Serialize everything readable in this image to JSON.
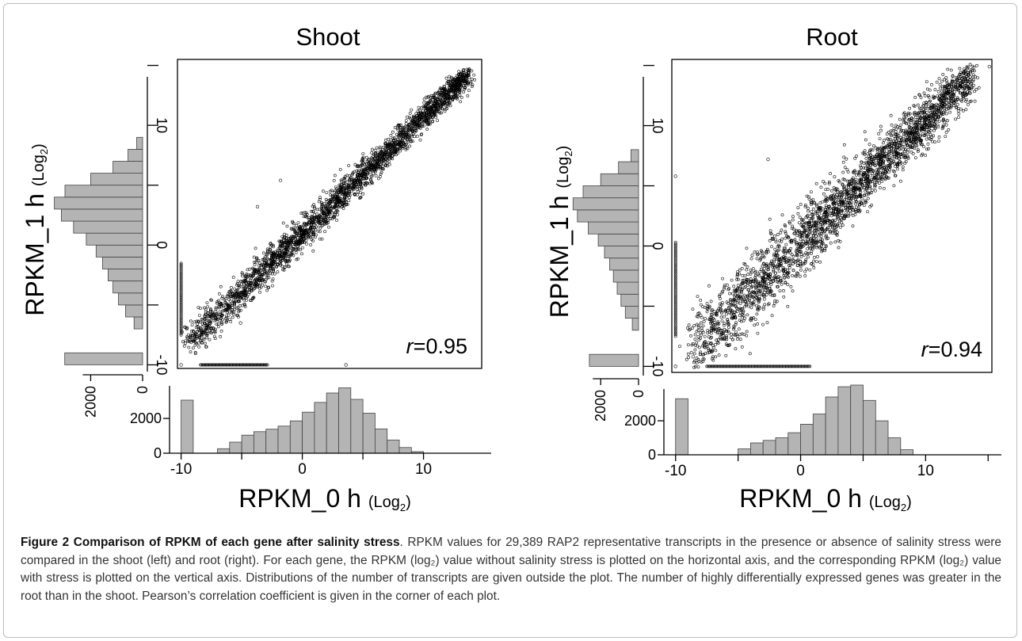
{
  "figure": {
    "caption_title": "Figure 2 Comparison of RPKM of each gene after salinity stress",
    "caption_body": ". RPKM values for 29,389 RAP2 representative transcripts in the presence or absence of salinity stress were compared in the shoot (left) and root (right). For each gene, the RPKM (log₂) value without salinity stress is plotted on the horizontal axis, and the corresponding RPKM (log₂) value with stress is plotted on the vertical axis. Distributions of the number of transcripts are given outside the plot. The number of highly differentially expressed genes was greater in the root than in the shoot. Pearson’s correlation coefficient is given in the corner of each plot."
  },
  "colors": {
    "hist_fill": "#b4b4b4",
    "point": "#000000",
    "caption_text": "#333333",
    "frame": "#bdbdbd"
  },
  "chart_data": [
    {
      "type": "scatter",
      "title": "Shoot",
      "xlabel": "RPKM_0 h",
      "xlabel_unit": "(Log",
      "ylabel": "RPKM_1 h",
      "ylabel_unit": "(Log",
      "log_base_subscript": "2",
      "xlim": [
        -10.3,
        14.8
      ],
      "ylim": [
        -10.3,
        15.5
      ],
      "x_ticks": [
        -10,
        0,
        10
      ],
      "y_ticks": [
        -10,
        0,
        10
      ],
      "annotation": {
        "label": "r",
        "value": "=0.95"
      },
      "scatter_band": {
        "from": [
          -9.5,
          -8.3
        ],
        "to": [
          13.7,
          14.3
        ],
        "spread": 1.2
      },
      "zero_column_x": {
        "x": -10,
        "y_from": -7.5,
        "y_to": -1.5
      },
      "zero_row_y": {
        "y": -10,
        "x_from": -8.4,
        "x_to": -2.8
      },
      "outliers": [
        [
          -3.7,
          3.2
        ],
        [
          -5.1,
          -6.5
        ],
        [
          3.6,
          -10
        ],
        [
          -1.8,
          5.4
        ]
      ],
      "x_hist": {
        "bins": [
          [
            -10,
            -9
          ],
          [
            -7,
            -6
          ],
          [
            -6,
            -5
          ],
          [
            -5,
            -4
          ],
          [
            -4,
            -3
          ],
          [
            -3,
            -2
          ],
          [
            -2,
            -1
          ],
          [
            -1,
            0
          ],
          [
            0,
            1
          ],
          [
            1,
            2
          ],
          [
            2,
            3
          ],
          [
            3,
            4
          ],
          [
            4,
            5
          ],
          [
            5,
            6
          ],
          [
            6,
            7
          ],
          [
            7,
            8
          ],
          [
            8,
            9
          ],
          [
            9,
            10
          ]
        ],
        "counts": [
          3050,
          260,
          640,
          1040,
          1240,
          1380,
          1560,
          1860,
          2360,
          2920,
          3460,
          3760,
          3100,
          2300,
          1400,
          760,
          330,
          90
        ],
        "ticks": [
          0,
          2000
        ]
      },
      "y_hist": {
        "bins": [
          [
            -10,
            -9
          ],
          [
            -7,
            -6
          ],
          [
            -6,
            -5
          ],
          [
            -5,
            -4
          ],
          [
            -4,
            -3
          ],
          [
            -3,
            -2
          ],
          [
            -2,
            -1
          ],
          [
            -1,
            0
          ],
          [
            0,
            1
          ],
          [
            1,
            2
          ],
          [
            2,
            3
          ],
          [
            3,
            4
          ],
          [
            4,
            5
          ],
          [
            5,
            6
          ],
          [
            6,
            7
          ],
          [
            7,
            8
          ],
          [
            8,
            9
          ]
        ],
        "counts": [
          3000,
          330,
          660,
          930,
          1140,
          1330,
          1540,
          1790,
          2170,
          2660,
          3130,
          3400,
          2990,
          2000,
          1140,
          560,
          230
        ],
        "ticks": [
          0,
          2000
        ]
      }
    },
    {
      "type": "scatter",
      "title": "Root",
      "xlabel": "RPKM_0 h",
      "xlabel_unit": "(Log",
      "ylabel": "RPKM_1 h",
      "ylabel_unit": "(Log",
      "log_base_subscript": "2",
      "xlim": [
        -10.3,
        15.3
      ],
      "ylim": [
        -10.5,
        15.5
      ],
      "x_ticks": [
        -10,
        0,
        10
      ],
      "y_ticks": [
        -10,
        0,
        10
      ],
      "annotation": {
        "label": "r",
        "value": "=0.94"
      },
      "scatter_band": {
        "from": [
          -8.8,
          -8.8
        ],
        "to": [
          13.8,
          14.3
        ],
        "spread": 2.6
      },
      "zero_column_x": {
        "x": -10,
        "y_from": -7.5,
        "y_to": 0.3
      },
      "zero_row_y": {
        "y": -10,
        "x_from": -7.5,
        "x_to": 0.8
      },
      "outliers": [
        [
          15.1,
          14.9
        ],
        [
          -8.6,
          -9.2
        ],
        [
          -2.6,
          7.2
        ],
        [
          -10,
          5.8
        ]
      ],
      "x_hist": {
        "bins": [
          [
            -10,
            -9
          ],
          [
            -5,
            -4
          ],
          [
            -4,
            -3
          ],
          [
            -3,
            -2
          ],
          [
            -2,
            -1
          ],
          [
            -1,
            0
          ],
          [
            0,
            1
          ],
          [
            1,
            2
          ],
          [
            2,
            3
          ],
          [
            3,
            4
          ],
          [
            4,
            5
          ],
          [
            5,
            6
          ],
          [
            6,
            7
          ],
          [
            7,
            8
          ],
          [
            8,
            9
          ]
        ],
        "counts": [
          3300,
          350,
          700,
          850,
          1000,
          1300,
          1800,
          2400,
          3400,
          4000,
          4100,
          3200,
          2000,
          1000,
          300
        ],
        "ticks": [
          0,
          2000
        ]
      },
      "y_hist": {
        "bins": [
          [
            -10,
            -9
          ],
          [
            -7,
            -6
          ],
          [
            -6,
            -5
          ],
          [
            -5,
            -4
          ],
          [
            -4,
            -3
          ],
          [
            -3,
            -2
          ],
          [
            -2,
            -1
          ],
          [
            -1,
            0
          ],
          [
            0,
            1
          ],
          [
            1,
            2
          ],
          [
            2,
            3
          ],
          [
            3,
            4
          ],
          [
            4,
            5
          ],
          [
            5,
            6
          ],
          [
            6,
            7
          ],
          [
            7,
            8
          ]
        ],
        "counts": [
          2600,
          330,
          700,
          930,
          1130,
          1330,
          1530,
          1800,
          2130,
          2660,
          3230,
          3460,
          2930,
          2000,
          1060,
          400
        ],
        "ticks": [
          0,
          2000
        ]
      }
    }
  ]
}
